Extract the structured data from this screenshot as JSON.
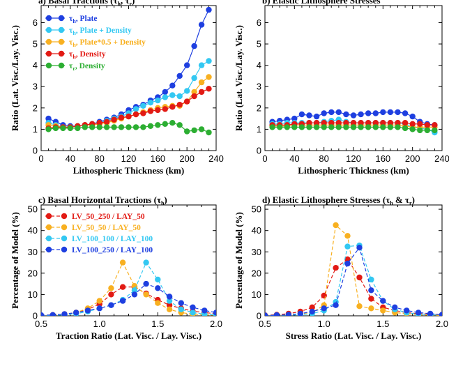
{
  "chart_data": [
    {
      "type": "line",
      "title": "a) Basal Tractions (τh, τr)",
      "title_main": "a) Basal Tractions (",
      "title_sym": [
        "h",
        "r"
      ],
      "xlabel": "Lithospheric Thickness (km)",
      "ylabel": "Ratio (Lat. Visc./Lay. Visc.)",
      "xlim": [
        0,
        240
      ],
      "ylim": [
        0,
        6.8
      ],
      "xticks": [
        0,
        40,
        80,
        120,
        160,
        200,
        240
      ],
      "yticks": [
        0,
        1,
        2,
        3,
        4,
        5,
        6
      ],
      "legend_position": "top-left",
      "series": [
        {
          "name": "τh, Plate",
          "sym": "h",
          "rest": ", Plate",
          "color": "#1e3fe0",
          "x": [
            10,
            20,
            30,
            40,
            50,
            60,
            70,
            80,
            90,
            100,
            110,
            120,
            130,
            140,
            150,
            160,
            170,
            180,
            190,
            200,
            210,
            220,
            230
          ],
          "values": [
            1.5,
            1.35,
            1.2,
            1.15,
            1.15,
            1.2,
            1.25,
            1.35,
            1.45,
            1.55,
            1.7,
            1.9,
            2.05,
            2.15,
            2.35,
            2.5,
            2.75,
            3.05,
            3.5,
            4.0,
            4.9,
            5.9,
            6.6
          ]
        },
        {
          "name": "τh, Plate + Density",
          "sym": "h",
          "rest": ", Plate + Density",
          "color": "#33c8f2",
          "x": [
            10,
            20,
            30,
            40,
            50,
            60,
            70,
            80,
            90,
            100,
            110,
            120,
            130,
            140,
            150,
            160,
            170,
            180,
            190,
            200,
            210,
            220,
            230
          ],
          "values": [
            1.3,
            1.2,
            1.1,
            1.1,
            1.15,
            1.2,
            1.25,
            1.3,
            1.4,
            1.5,
            1.6,
            1.75,
            1.95,
            2.1,
            2.25,
            2.35,
            2.5,
            2.6,
            2.55,
            2.8,
            3.4,
            4.0,
            4.2
          ]
        },
        {
          "name": "τh, Plate*0.5 + Density",
          "sym": "h",
          "rest": ", Plate*0.5 + Density",
          "color": "#f8b020",
          "x": [
            10,
            20,
            30,
            40,
            50,
            60,
            70,
            80,
            90,
            100,
            110,
            120,
            130,
            140,
            150,
            160,
            170,
            180,
            190,
            200,
            210,
            220,
            230
          ],
          "values": [
            1.2,
            1.15,
            1.1,
            1.1,
            1.15,
            1.2,
            1.2,
            1.25,
            1.3,
            1.4,
            1.5,
            1.6,
            1.7,
            1.8,
            1.9,
            2.0,
            2.05,
            2.1,
            2.1,
            2.3,
            2.75,
            3.2,
            3.45
          ]
        },
        {
          "name": "τh, Density",
          "sym": "h",
          "rest": ", Density",
          "color": "#e21a14",
          "x": [
            10,
            20,
            30,
            40,
            50,
            60,
            70,
            80,
            90,
            100,
            110,
            120,
            130,
            140,
            150,
            160,
            170,
            180,
            190,
            200,
            210,
            220,
            230
          ],
          "values": [
            1.05,
            1.1,
            1.1,
            1.1,
            1.15,
            1.2,
            1.25,
            1.3,
            1.35,
            1.45,
            1.55,
            1.6,
            1.7,
            1.75,
            1.85,
            1.9,
            1.95,
            2.05,
            2.15,
            2.3,
            2.55,
            2.75,
            2.9
          ]
        },
        {
          "name": "τr, Density",
          "sym": "r",
          "rest": ", Density",
          "color": "#2cae32",
          "x": [
            10,
            20,
            30,
            40,
            50,
            60,
            70,
            80,
            90,
            100,
            110,
            120,
            130,
            140,
            150,
            160,
            170,
            180,
            190,
            200,
            210,
            220,
            230
          ],
          "values": [
            1.0,
            1.05,
            1.05,
            1.05,
            1.05,
            1.1,
            1.1,
            1.1,
            1.1,
            1.1,
            1.1,
            1.1,
            1.1,
            1.1,
            1.15,
            1.2,
            1.25,
            1.3,
            1.2,
            0.9,
            0.95,
            1.0,
            0.85
          ]
        }
      ]
    },
    {
      "type": "line",
      "title": "b) Elastic Lithosphere Stresses",
      "title_main": "b) Elastic Lithosphere Stresses",
      "title_sym": [],
      "xlabel": "Lithospheric Thickness (km)",
      "ylabel": "Ratio (Lat. Visc./Lay. Visc.)",
      "xlim": [
        0,
        240
      ],
      "ylim": [
        0,
        6.8
      ],
      "xticks": [
        0,
        40,
        80,
        120,
        160,
        200,
        240
      ],
      "yticks": [
        0,
        1,
        2,
        3,
        4,
        5,
        6
      ],
      "series": [
        {
          "color": "#1e3fe0",
          "x": [
            10,
            20,
            30,
            40,
            50,
            60,
            70,
            80,
            90,
            100,
            110,
            120,
            130,
            140,
            150,
            160,
            170,
            180,
            190,
            200,
            210,
            220,
            230
          ],
          "values": [
            1.35,
            1.4,
            1.45,
            1.5,
            1.7,
            1.65,
            1.6,
            1.75,
            1.8,
            1.8,
            1.7,
            1.65,
            1.7,
            1.75,
            1.75,
            1.8,
            1.8,
            1.8,
            1.75,
            1.6,
            1.35,
            1.25,
            1.2
          ]
        },
        {
          "color": "#33c8f2",
          "x": [
            10,
            20,
            30,
            40,
            50,
            60,
            70,
            80,
            90,
            100,
            110,
            120,
            130,
            140,
            150,
            160,
            170,
            180,
            190,
            200,
            210,
            220,
            230
          ],
          "values": [
            1.25,
            1.25,
            1.3,
            1.3,
            1.3,
            1.3,
            1.3,
            1.35,
            1.4,
            1.45,
            1.35,
            1.3,
            1.3,
            1.3,
            1.3,
            1.3,
            1.3,
            1.3,
            1.25,
            1.1,
            1.05,
            1.0,
            0.85
          ]
        },
        {
          "color": "#f8b020",
          "x": [
            10,
            20,
            30,
            40,
            50,
            60,
            70,
            80,
            90,
            100,
            110,
            120,
            130,
            140,
            150,
            160,
            170,
            180,
            190,
            200,
            210,
            220,
            230
          ],
          "values": [
            1.15,
            1.15,
            1.15,
            1.2,
            1.2,
            1.2,
            1.2,
            1.2,
            1.2,
            1.2,
            1.2,
            1.2,
            1.2,
            1.2,
            1.2,
            1.2,
            1.2,
            1.2,
            1.15,
            1.1,
            1.1,
            1.1,
            1.1
          ]
        },
        {
          "color": "#e21a14",
          "x": [
            10,
            20,
            30,
            40,
            50,
            60,
            70,
            80,
            90,
            100,
            110,
            120,
            130,
            140,
            150,
            160,
            170,
            180,
            190,
            200,
            210,
            220,
            230
          ],
          "values": [
            1.2,
            1.2,
            1.2,
            1.25,
            1.25,
            1.3,
            1.3,
            1.3,
            1.3,
            1.3,
            1.3,
            1.3,
            1.3,
            1.3,
            1.3,
            1.3,
            1.3,
            1.3,
            1.3,
            1.25,
            1.25,
            1.2,
            1.2
          ]
        },
        {
          "color": "#2cae32",
          "x": [
            10,
            20,
            30,
            40,
            50,
            60,
            70,
            80,
            90,
            100,
            110,
            120,
            130,
            140,
            150,
            160,
            170,
            180,
            190,
            200,
            210,
            220,
            230
          ],
          "values": [
            1.1,
            1.1,
            1.1,
            1.1,
            1.1,
            1.1,
            1.1,
            1.1,
            1.1,
            1.1,
            1.1,
            1.1,
            1.1,
            1.1,
            1.1,
            1.1,
            1.1,
            1.1,
            1.05,
            1.0,
            0.95,
            0.95,
            0.95
          ]
        }
      ]
    },
    {
      "type": "line",
      "title": "c) Basal Horizontal Tractions (τh)",
      "title_main": "c) Basal Horizontal Tractions (",
      "title_sym": [
        "h"
      ],
      "xlabel": "Traction Ratio (Lat. Visc. / Lay. Visc.)",
      "ylabel": "Percentage of Model (%)",
      "xlim": [
        0.5,
        2.0
      ],
      "ylim": [
        0,
        52
      ],
      "xticks": [
        0.5,
        1.0,
        1.5,
        2.0
      ],
      "xtick_labels": [
        "0.5",
        "1.0",
        "1.5",
        "2.0"
      ],
      "yticks": [
        0,
        10,
        20,
        30,
        40,
        50
      ],
      "legend_position": "top-left",
      "series": [
        {
          "name": "LV_50_250 / LAY_50",
          "color": "#e21a14",
          "x": [
            0.5,
            0.6,
            0.7,
            0.8,
            0.9,
            1.0,
            1.1,
            1.2,
            1.3,
            1.4,
            1.5,
            1.6,
            1.7,
            1.8,
            1.9,
            2.0
          ],
          "values": [
            0.2,
            0.4,
            0.8,
            1.5,
            3.0,
            5.5,
            10.0,
            13.5,
            13.5,
            10.5,
            7.5,
            5.0,
            3.5,
            2.2,
            1.5,
            1.0
          ]
        },
        {
          "name": "LV_50_50 / LAY_50",
          "color": "#f8b020",
          "x": [
            0.5,
            0.6,
            0.7,
            0.8,
            0.9,
            1.0,
            1.1,
            1.2,
            1.3,
            1.4,
            1.5,
            1.6,
            1.7,
            1.8,
            1.9,
            2.0
          ],
          "values": [
            0.1,
            0.3,
            0.7,
            1.5,
            3.5,
            7.0,
            13.0,
            25.0,
            14.0,
            10.0,
            6.0,
            3.0,
            1.5,
            0.8,
            0.5,
            0.3
          ]
        },
        {
          "name": "LV_100_100 / LAY_100",
          "color": "#33c8f2",
          "x": [
            0.5,
            0.6,
            0.7,
            0.8,
            0.9,
            1.0,
            1.1,
            1.2,
            1.3,
            1.4,
            1.5,
            1.6,
            1.7,
            1.8,
            1.9,
            2.0
          ],
          "values": [
            0.1,
            0.2,
            0.5,
            1.0,
            2.0,
            3.5,
            5.0,
            7.5,
            12.0,
            25.0,
            17.0,
            7.0,
            3.0,
            1.5,
            0.8,
            0.4
          ]
        },
        {
          "name": "LV_100_250 / LAY_100",
          "color": "#1e3fe0",
          "x": [
            0.5,
            0.6,
            0.7,
            0.8,
            0.9,
            1.0,
            1.1,
            1.2,
            1.3,
            1.4,
            1.5,
            1.6,
            1.7,
            1.8,
            1.9,
            2.0
          ],
          "values": [
            0.3,
            0.4,
            0.8,
            1.5,
            2.5,
            3.5,
            5.0,
            7.0,
            10.0,
            15.0,
            13.0,
            9.0,
            6.0,
            4.0,
            2.5,
            1.5
          ]
        }
      ]
    },
    {
      "type": "line",
      "title": "d) Elastic Lithosphere Stresses (τh & τr)",
      "title_main": "d) Elastic Lithosphere Stresses (",
      "title_sym": [
        "h",
        "r"
      ],
      "xlabel": "Stress Ratio (Lat. Visc. / Lay. Visc.)",
      "ylabel": "Percentage of Model (%)",
      "xlim": [
        0.5,
        2.0
      ],
      "ylim": [
        0,
        52
      ],
      "xticks": [
        0.5,
        1.0,
        1.5,
        2.0
      ],
      "xtick_labels": [
        "0.5",
        "1.0",
        "1.5",
        "2.0"
      ],
      "yticks": [
        0,
        10,
        20,
        30,
        40,
        50
      ],
      "series": [
        {
          "color": "#e21a14",
          "x": [
            0.5,
            0.6,
            0.7,
            0.8,
            0.9,
            1.0,
            1.1,
            1.2,
            1.3,
            1.4,
            1.5,
            1.6,
            1.7,
            1.8,
            1.9,
            2.0
          ],
          "values": [
            0.3,
            0.5,
            1.0,
            2.0,
            4.0,
            9.5,
            22.5,
            26.5,
            18.0,
            8.0,
            4.0,
            2.5,
            1.5,
            1.0,
            0.8,
            0.5
          ]
        },
        {
          "color": "#f8b020",
          "x": [
            0.5,
            0.6,
            0.7,
            0.8,
            0.9,
            1.0,
            1.1,
            1.2,
            1.3,
            1.4,
            1.5,
            1.6,
            1.7,
            1.8,
            1.9,
            2.0
          ],
          "values": [
            0.2,
            0.3,
            0.5,
            1.0,
            1.5,
            5.0,
            42.5,
            37.5,
            4.5,
            3.5,
            2.5,
            1.5,
            1.0,
            0.5,
            0.3,
            0.2
          ]
        },
        {
          "color": "#33c8f2",
          "x": [
            0.5,
            0.6,
            0.7,
            0.8,
            0.9,
            1.0,
            1.1,
            1.2,
            1.3,
            1.4,
            1.5,
            1.6,
            1.7,
            1.8,
            1.9,
            2.0
          ],
          "values": [
            0.1,
            0.2,
            0.3,
            0.5,
            1.0,
            2.5,
            6.5,
            32.5,
            33.0,
            17.0,
            7.0,
            3.0,
            1.5,
            0.8,
            0.5,
            0.3
          ]
        },
        {
          "color": "#1e3fe0",
          "x": [
            0.5,
            0.6,
            0.7,
            0.8,
            0.9,
            1.0,
            1.1,
            1.2,
            1.3,
            1.4,
            1.5,
            1.6,
            1.7,
            1.8,
            1.9,
            2.0
          ],
          "values": [
            0.2,
            0.3,
            0.5,
            1.0,
            2.0,
            3.5,
            5.0,
            24.5,
            32.0,
            12.0,
            7.0,
            4.0,
            2.5,
            1.5,
            1.0,
            0.5
          ]
        }
      ]
    }
  ]
}
